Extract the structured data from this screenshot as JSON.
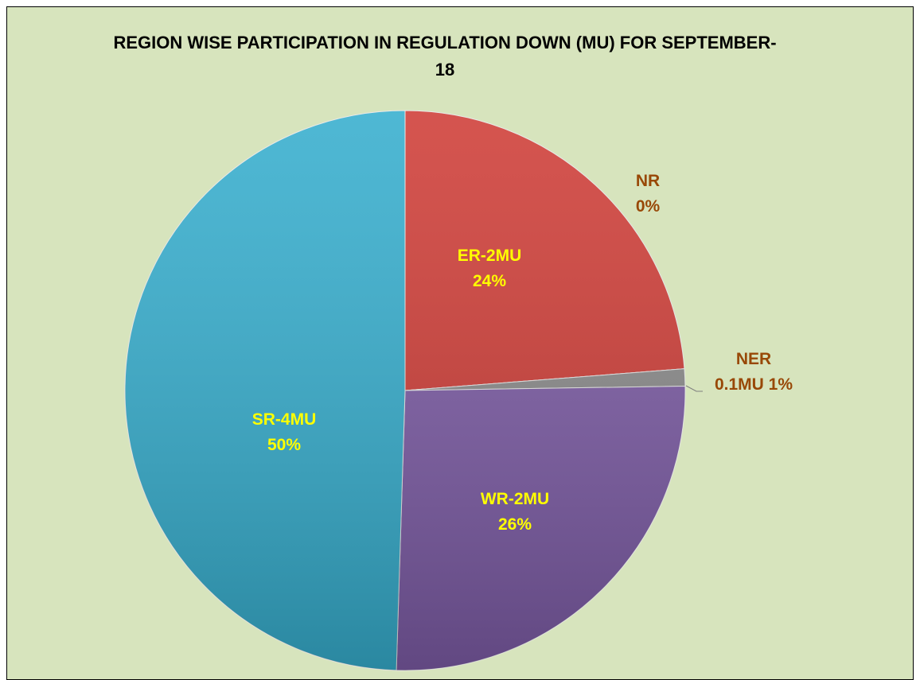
{
  "chart_data": {
    "type": "pie",
    "title": "REGION WISE PARTICIPATION IN REGULATION DOWN (MU) FOR SEPTEMBER-18",
    "categories": [
      "ER-2MU",
      "NR",
      "NER 0.1MU",
      "WR-2MU",
      "SR-4MU"
    ],
    "values": [
      24,
      0,
      1,
      26,
      50
    ],
    "value_labels": [
      "24%",
      "0%",
      "1%",
      "26%",
      "50%"
    ],
    "colors": [
      "#cf3d37",
      "#9bbb59",
      "#8c8c8c",
      "#7d5ca6",
      "#36aece"
    ]
  }
}
